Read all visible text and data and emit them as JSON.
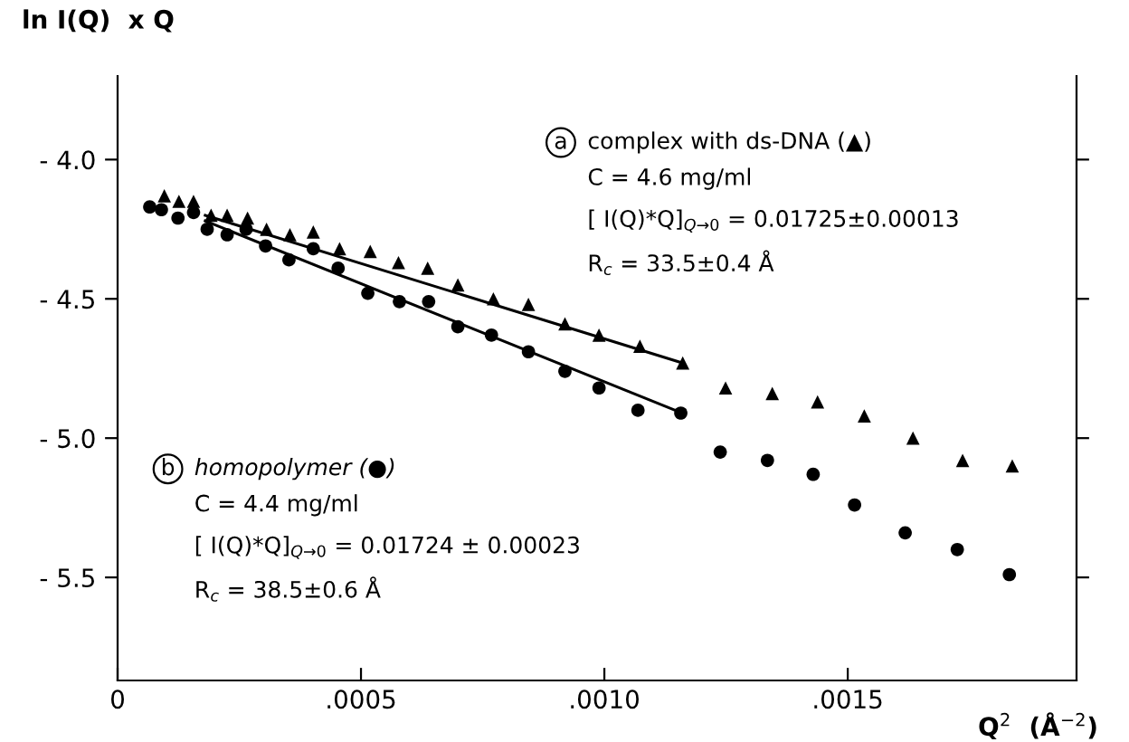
{
  "chart_data": {
    "type": "scatter",
    "xlabel": "Q$^{2}$  (Å$^{−2}$)",
    "ylabel": "ln I(Q)  x Q",
    "xlim": [
      0,
      0.00197
    ],
    "ylim": [
      -5.87,
      -3.7
    ],
    "xticks": [
      {
        "value": 0,
        "label": "0"
      },
      {
        "value": 0.0005,
        "label": ".0005"
      },
      {
        "value": 0.001,
        "label": ".0010"
      },
      {
        "value": 0.0015,
        "label": ".0015"
      }
    ],
    "yticks": [
      {
        "value": -4.0,
        "label": "- 4.0"
      },
      {
        "value": -4.5,
        "label": "- 4.5"
      },
      {
        "value": -5.0,
        "label": "- 5.0"
      },
      {
        "value": -5.5,
        "label": "- 5.5"
      }
    ],
    "grid": false,
    "legend": false,
    "series": [
      {
        "marker": "triangle",
        "color": "#000000",
        "x": [
          9.6e-05,
          0.000126,
          0.000156,
          0.000192,
          0.000225,
          0.000267,
          0.000306,
          0.000354,
          0.000402,
          0.000456,
          0.000519,
          0.000577,
          0.000637,
          0.000699,
          0.000772,
          0.000844,
          0.000919,
          0.000989,
          0.001073,
          0.001161,
          0.001249,
          0.001345,
          0.001438,
          0.001534,
          0.001634,
          0.001736,
          0.001838
        ],
        "values": [
          -4.13,
          -4.15,
          -4.15,
          -4.2,
          -4.2,
          -4.21,
          -4.25,
          -4.27,
          -4.26,
          -4.32,
          -4.33,
          -4.37,
          -4.39,
          -4.45,
          -4.5,
          -4.52,
          -4.59,
          -4.63,
          -4.67,
          -4.73,
          -4.82,
          -4.84,
          -4.87,
          -4.92,
          -5.0,
          -5.08,
          -5.1
        ]
      },
      {
        "marker": "circle",
        "color": "#000000",
        "x": [
          6.6e-05,
          9e-05,
          0.000124,
          0.000156,
          0.000184,
          0.000225,
          0.000264,
          0.000304,
          0.000352,
          0.000402,
          0.000453,
          0.000514,
          0.000579,
          0.000639,
          0.000699,
          0.000768,
          0.000844,
          0.000919,
          0.000989,
          0.001069,
          0.001157,
          0.001238,
          0.001335,
          0.001429,
          0.001514,
          0.001618,
          0.001725,
          0.001832
        ],
        "values": [
          -4.17,
          -4.18,
          -4.21,
          -4.19,
          -4.25,
          -4.27,
          -4.25,
          -4.31,
          -4.36,
          -4.32,
          -4.39,
          -4.48,
          -4.51,
          -4.51,
          -4.6,
          -4.63,
          -4.69,
          -4.76,
          -4.82,
          -4.9,
          -4.91,
          -5.05,
          -5.08,
          -5.13,
          -5.24,
          -5.34,
          -5.4,
          -5.49
        ]
      },
      {
        "type": "line",
        "marker": "none",
        "line_style": "solid",
        "color": "#000000",
        "x": [
          0.00018,
          0.00116
        ],
        "values": [
          -4.2,
          -4.73
        ]
      },
      {
        "type": "line",
        "marker": "none",
        "line_style": "solid",
        "color": "#000000",
        "x": [
          0.00018,
          0.00116
        ],
        "values": [
          -4.22,
          -4.91
        ]
      }
    ],
    "annotations": [
      "a",
      "complex with ds-DNA (▲)",
      "C = 4.6 mg/ml",
      "[ I(Q)*Q]$_{Q→0}$ = 0.01725±0.00013",
      "R$_{c}$ = 33.5±0.4 Å",
      "b",
      "homopolymer (●)",
      "C = 4.4 mg/ml",
      "[ I(Q)*Q]$_{Q→0}$ = 0.01724 ± 0.00023",
      "R$_{c}$ = 38.5±0.6 Å"
    ]
  }
}
